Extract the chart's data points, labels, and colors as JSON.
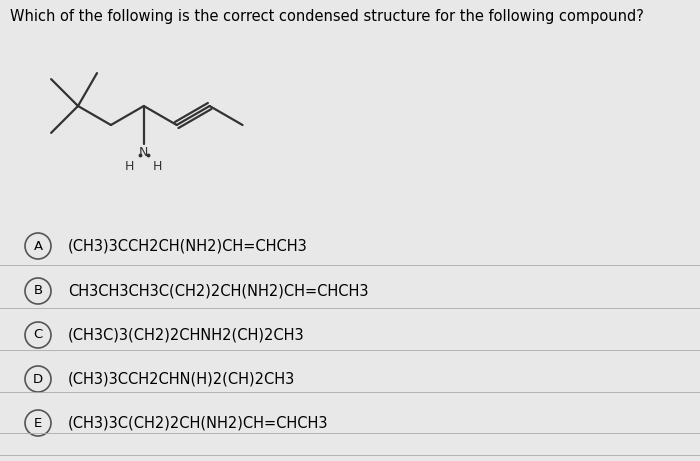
{
  "title": "Which of the following is the correct condensed structure for the following compound?",
  "background_color": "#e8e8e8",
  "option_texts": [
    "(CH3)3CCH2CH(NH2)CH=CHCH3",
    "CH3CH3CH3C(CH2)2CH(NH2)CH=CHCH3",
    "(CH3C)3(CH2)2CHNH2(CH)2CH3",
    "(CH3)3CCH2CHN(H)2(CH)2CH3",
    "(CH3)3C(CH2)2CH(NH2)CH=CHCH3"
  ],
  "option_labels": [
    "A",
    "B",
    "C",
    "D",
    "E"
  ],
  "title_fontsize": 10.5,
  "option_fontsize": 10.5,
  "label_fontsize": 9.5
}
